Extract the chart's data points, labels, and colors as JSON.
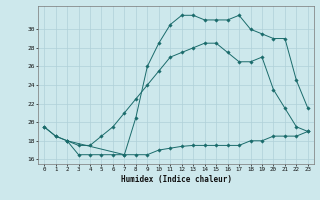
{
  "xlabel": "Humidex (Indice chaleur)",
  "background_color": "#cde8ec",
  "grid_color": "#b0d0d8",
  "line_color": "#1a6b6b",
  "xlim": [
    -0.5,
    23.5
  ],
  "ylim": [
    15.5,
    32.5
  ],
  "yticks": [
    16,
    18,
    20,
    22,
    24,
    26,
    28,
    30
  ],
  "xticks": [
    0,
    1,
    2,
    3,
    4,
    5,
    6,
    7,
    8,
    9,
    10,
    11,
    12,
    13,
    14,
    15,
    16,
    17,
    18,
    19,
    20,
    21,
    22,
    23
  ],
  "series1_x": [
    0,
    1,
    2,
    3,
    4,
    5,
    6,
    7,
    8,
    9,
    10,
    11,
    12,
    13,
    14,
    15,
    16,
    17,
    18,
    19,
    20,
    21,
    22,
    23
  ],
  "series1_y": [
    19.5,
    18.5,
    18.0,
    16.5,
    16.5,
    16.5,
    16.5,
    16.5,
    16.5,
    16.5,
    17.0,
    17.2,
    17.4,
    17.5,
    17.5,
    17.5,
    17.5,
    17.5,
    18.0,
    18.0,
    18.5,
    18.5,
    18.5,
    19.0
  ],
  "series2_x": [
    0,
    1,
    2,
    3,
    4,
    5,
    6,
    7,
    8,
    9,
    10,
    11,
    12,
    13,
    14,
    15,
    16,
    17,
    18,
    19,
    20,
    21,
    22,
    23
  ],
  "series2_y": [
    19.5,
    18.5,
    18.0,
    17.5,
    17.5,
    18.5,
    19.5,
    21.0,
    22.5,
    24.0,
    25.5,
    27.0,
    27.5,
    28.0,
    28.5,
    28.5,
    27.5,
    26.5,
    26.5,
    27.0,
    23.5,
    21.5,
    19.5,
    19.0
  ],
  "series3_x": [
    2,
    7,
    8,
    9,
    10,
    11,
    12,
    13,
    14,
    15,
    16,
    17,
    18,
    19,
    20,
    21,
    22,
    23
  ],
  "series3_y": [
    18.0,
    16.5,
    20.5,
    26.0,
    28.5,
    30.5,
    31.5,
    31.5,
    31.0,
    31.0,
    31.0,
    31.5,
    30.0,
    29.5,
    29.0,
    29.0,
    24.5,
    21.5
  ]
}
